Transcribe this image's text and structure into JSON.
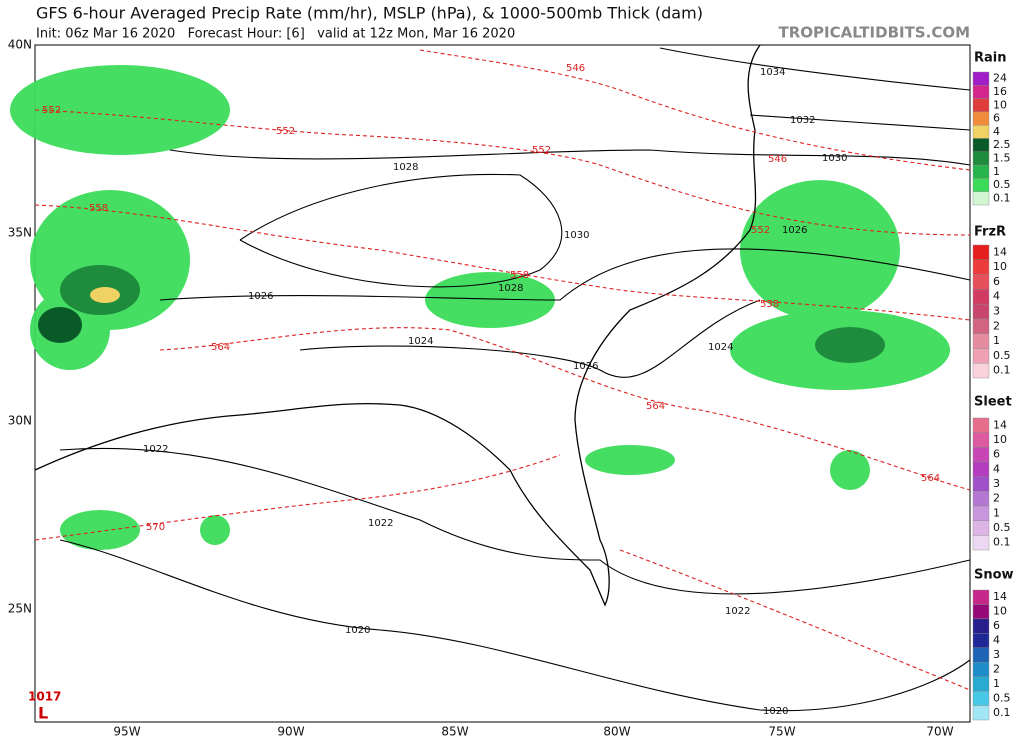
{
  "header": {
    "title": "GFS 6-hour Averaged Precip Rate (mm/hr), MSLP (hPa), & 1000-500mb Thick (dam)",
    "subtitle": "Init: 06z Mar 16 2020   Forecast Hour: [6]   valid at 12z Mon, Mar 16 2020",
    "credit": "TROPICALTIDBITS.COM"
  },
  "map": {
    "lat_labels": [
      "40N",
      "35N",
      "30N",
      "25N"
    ],
    "lon_labels": [
      "95W",
      "90W",
      "85W",
      "80W",
      "75W",
      "70W"
    ],
    "isobar_labels": [
      1034,
      1032,
      1030,
      1028,
      1030,
      1026,
      1028,
      1026,
      1024,
      1026,
      1024,
      1022,
      1022,
      1022,
      1020,
      1020
    ],
    "thickness_labels": [
      546,
      552,
      552,
      552,
      546,
      552,
      558,
      558,
      558,
      564,
      564,
      564,
      570
    ],
    "low_center": {
      "pressure": 1017,
      "marker": "L"
    }
  },
  "legends": [
    {
      "title": "Rain",
      "items": [
        {
          "value": 24,
          "color": "#a01ec8"
        },
        {
          "value": 16,
          "color": "#d2268c"
        },
        {
          "value": 10,
          "color": "#e03c3c"
        },
        {
          "value": 6,
          "color": "#f08c3c"
        },
        {
          "value": 4,
          "color": "#f0d264"
        },
        {
          "value": 2.5,
          "color": "#0a5a28"
        },
        {
          "value": 1.5,
          "color": "#1e8c3c"
        },
        {
          "value": 1,
          "color": "#28b44b"
        },
        {
          "value": 0.5,
          "color": "#3cdc5a"
        },
        {
          "value": 0.1,
          "color": "#d2f5d2"
        }
      ]
    },
    {
      "title": "FrzR",
      "items": [
        {
          "value": 14,
          "color": "#e61e1e"
        },
        {
          "value": 10,
          "color": "#ee3c3c"
        },
        {
          "value": 6,
          "color": "#e6505a"
        },
        {
          "value": 4,
          "color": "#d23c64"
        },
        {
          "value": 3,
          "color": "#c8466e"
        },
        {
          "value": 2,
          "color": "#d26482"
        },
        {
          "value": 1,
          "color": "#e68ca0"
        },
        {
          "value": 0.5,
          "color": "#f0a0b4"
        },
        {
          "value": 0.1,
          "color": "#fad2dc"
        }
      ]
    },
    {
      "title": "Sleet",
      "items": [
        {
          "value": 14,
          "color": "#e66e8c"
        },
        {
          "value": 10,
          "color": "#dc5aa0"
        },
        {
          "value": 6,
          "color": "#c846b4"
        },
        {
          "value": 4,
          "color": "#b43cbe"
        },
        {
          "value": 3,
          "color": "#a050c8"
        },
        {
          "value": 2,
          "color": "#b478d2"
        },
        {
          "value": 1,
          "color": "#c896dc"
        },
        {
          "value": 0.5,
          "color": "#dcb4e6"
        },
        {
          "value": 0.1,
          "color": "#ecd8f2"
        }
      ]
    },
    {
      "title": "Snow",
      "items": [
        {
          "value": 14,
          "color": "#c8288c"
        },
        {
          "value": 10,
          "color": "#960a78"
        },
        {
          "value": 6,
          "color": "#281e8c"
        },
        {
          "value": 4,
          "color": "#1e2896"
        },
        {
          "value": 3,
          "color": "#1e64b4"
        },
        {
          "value": 2,
          "color": "#1e8cc8"
        },
        {
          "value": 1,
          "color": "#28aad2"
        },
        {
          "value": 0.5,
          "color": "#46c8e6"
        },
        {
          "value": 0.1,
          "color": "#a0e6f5"
        }
      ]
    }
  ]
}
